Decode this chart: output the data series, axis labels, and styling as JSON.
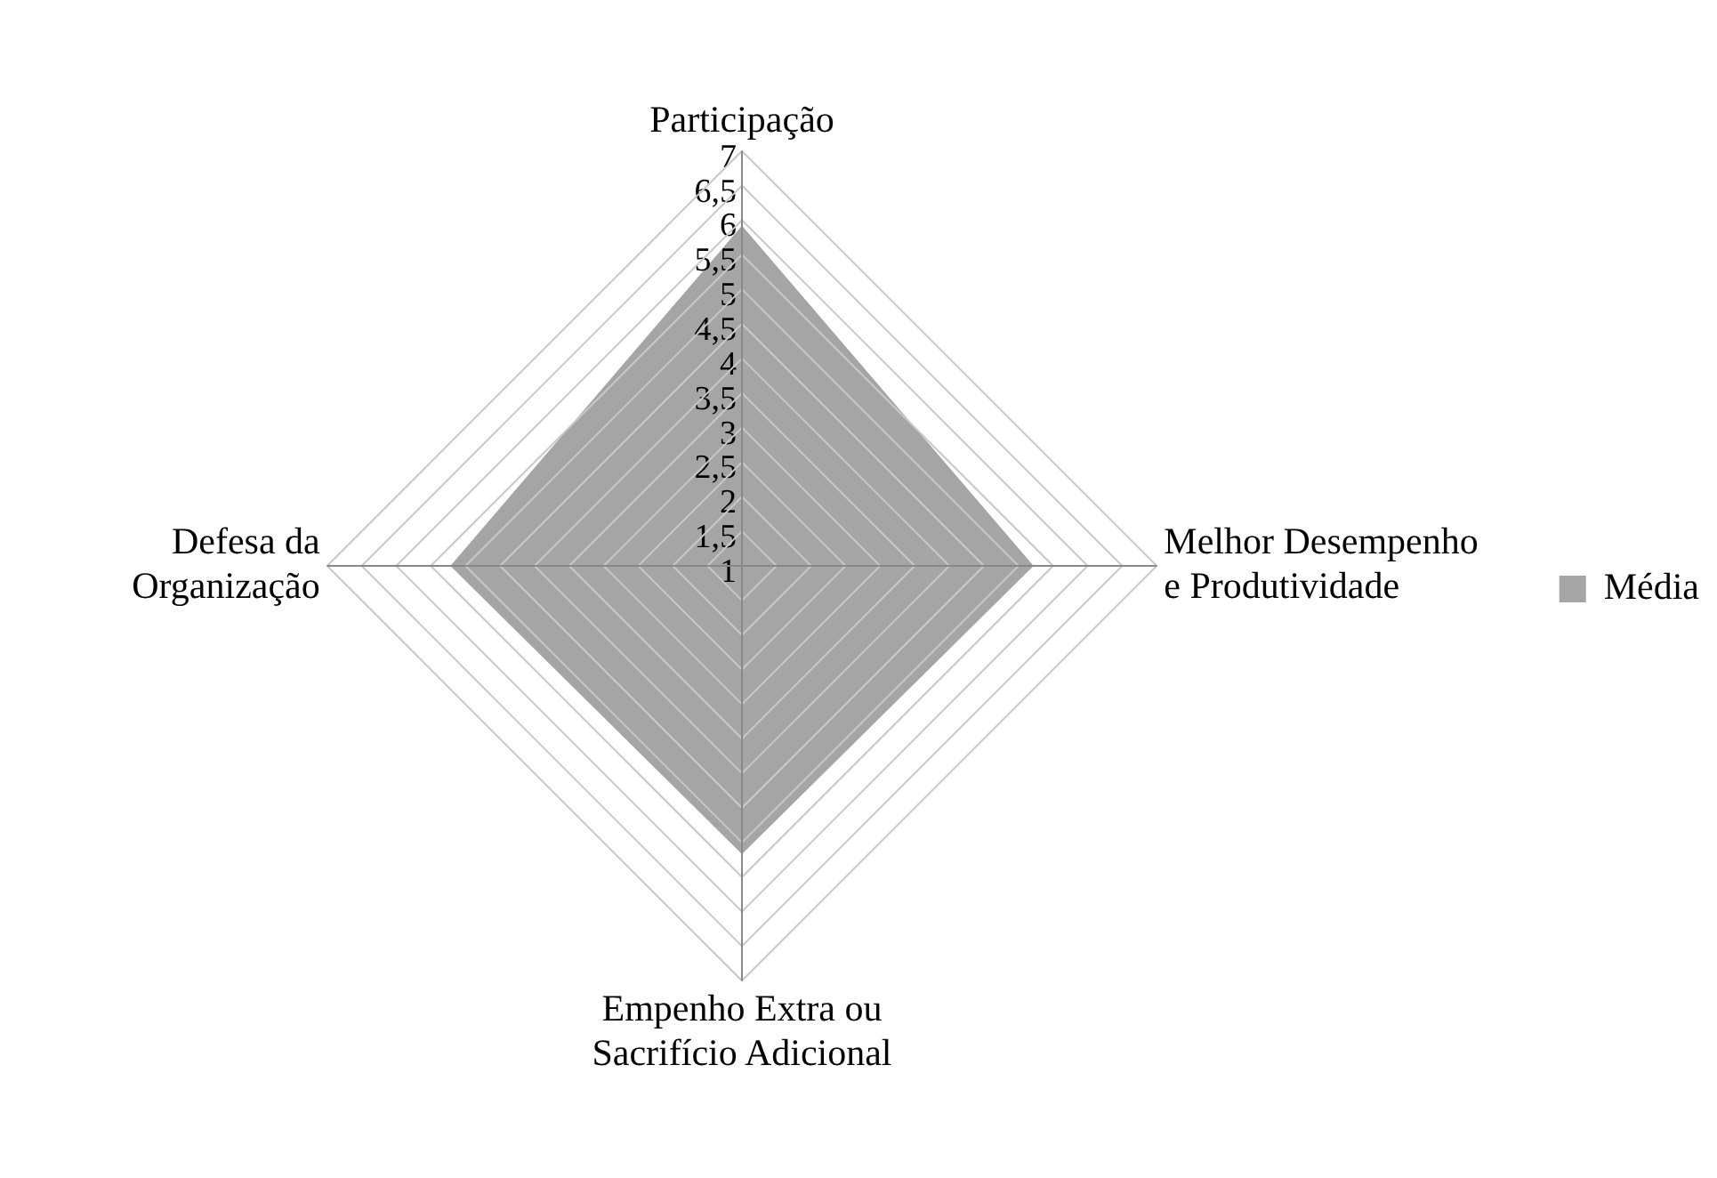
{
  "chart_data": {
    "type": "radar",
    "categories": [
      "Participação",
      "Melhor Desempenho\ne Produtividade",
      "Empenho Extra ou\nSacrifício Adicional",
      "Defesa da\nOrganização"
    ],
    "series": [
      {
        "name": "Média",
        "color": "#a5a5a5",
        "values": [
          5.9,
          5.2,
          5.15,
          5.2
        ]
      }
    ],
    "ylim": [
      1,
      7
    ],
    "yticks": [
      1,
      {
        "value": 1.5,
        "label": "1,5"
      },
      2,
      {
        "value": 2.5,
        "label": "2,5"
      },
      3,
      {
        "value": 3.5,
        "label": "3,5"
      },
      4,
      {
        "value": 4.5,
        "label": "4,5"
      },
      5,
      {
        "value": 5.5,
        "label": "5,5"
      },
      6,
      {
        "value": 6.5,
        "label": "6,5"
      },
      7
    ],
    "grid": true,
    "legend": "right",
    "marker": "none"
  }
}
